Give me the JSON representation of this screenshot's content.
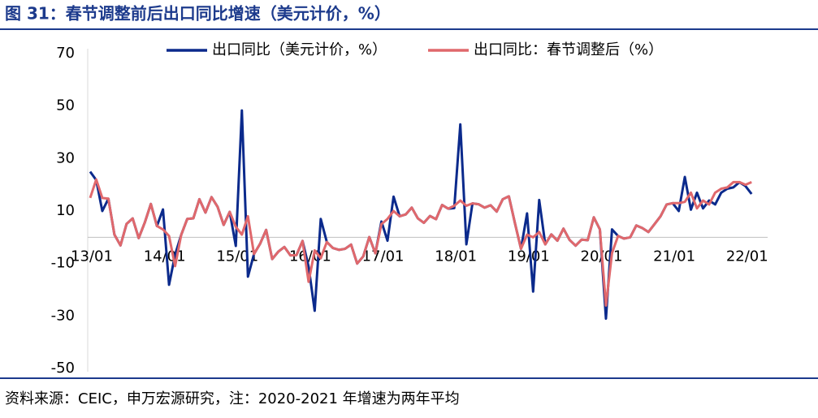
{
  "chart_data": {
    "type": "line",
    "title": "图 31：春节调整前后出口同比增速（美元计价，%）",
    "source": "资料来源：CEIC，申万宏源研究，注：2020-2021 年增速为两年平均",
    "categories": [
      "13/01",
      null,
      null,
      null,
      null,
      null,
      null,
      null,
      null,
      null,
      null,
      null,
      "14/01",
      null,
      null,
      null,
      null,
      null,
      null,
      null,
      null,
      null,
      null,
      null,
      "15/01",
      null,
      null,
      null,
      null,
      null,
      null,
      null,
      null,
      null,
      null,
      null,
      "16/01",
      null,
      null,
      null,
      null,
      null,
      null,
      null,
      null,
      null,
      null,
      null,
      "17/01",
      null,
      null,
      null,
      null,
      null,
      null,
      null,
      null,
      null,
      null,
      null,
      "18/01",
      null,
      null,
      null,
      null,
      null,
      null,
      null,
      null,
      null,
      null,
      null,
      "19/01",
      null,
      null,
      null,
      null,
      null,
      null,
      null,
      null,
      null,
      null,
      null,
      "20/01",
      null,
      null,
      null,
      null,
      null,
      null,
      null,
      null,
      null,
      null,
      null,
      "21/01",
      null,
      null,
      null,
      null,
      null,
      null,
      null,
      null,
      null,
      null,
      null,
      "22/01",
      null
    ],
    "series": [
      {
        "name": "出口同比（美元计价，%）",
        "color": "#0b2a8c",
        "values": [
          25,
          21.8,
          10,
          14.7,
          1,
          -3.1,
          5.1,
          7.2,
          -0.3,
          5.6,
          12.7,
          4.3,
          10.6,
          -18.1,
          -6.6,
          0.9,
          7,
          7.2,
          14.5,
          9.4,
          15.3,
          11.6,
          4.7,
          9.7,
          -3.3,
          48.3,
          -15,
          -6.4,
          -2.5,
          2.8,
          -8.3,
          -5.5,
          -3.7,
          -6.9,
          -6.8,
          -1.4,
          -11.2,
          -28,
          7,
          -1.8,
          -4.1,
          -4.8,
          -4.4,
          -2.8,
          -10,
          -7.3,
          0.1,
          -6.1,
          6,
          -1.3,
          15.5,
          8,
          8.7,
          11.3,
          7.2,
          5.5,
          8.1,
          6.9,
          12.3,
          10.9,
          11.1,
          43,
          -2.7,
          12.9,
          12.6,
          11.3,
          12.2,
          9.8,
          14.5,
          15.6,
          5.4,
          -4.4,
          9.1,
          -20.7,
          14.2,
          -2.7,
          1.1,
          -1.3,
          3.3,
          -1,
          -3.2,
          -0.9,
          -1.1,
          7.6,
          3,
          -31,
          3,
          0.5,
          -0.5,
          0,
          4.5,
          3.5,
          2,
          5,
          8,
          12.5,
          13,
          10,
          23,
          10.5,
          17,
          11,
          14,
          12.5,
          17,
          18.5,
          19,
          21,
          19.5,
          16.5
        ]
      },
      {
        "name": "出口同比：春节调整后（%）",
        "color": "#e0686c",
        "values": [
          15,
          22,
          15,
          14.7,
          1,
          -3.1,
          5.1,
          7.2,
          -0.3,
          5.6,
          12.7,
          4.3,
          3,
          0.5,
          -11,
          0.9,
          7,
          7.2,
          14.5,
          9.4,
          15.3,
          11.6,
          4.7,
          9.7,
          4,
          1,
          8,
          -6.4,
          -2.5,
          2.8,
          -8.3,
          -5.5,
          -3.7,
          -6.9,
          -6.8,
          -1.4,
          -17,
          -5,
          -8,
          -1.8,
          -4.1,
          -4.8,
          -4.4,
          -2.8,
          -10,
          -7.3,
          0.1,
          -6.1,
          5,
          7,
          10,
          8,
          8.7,
          11.3,
          7.2,
          5.5,
          8.1,
          6.9,
          12.3,
          10.9,
          12,
          14,
          12,
          12.9,
          12.6,
          11.3,
          12.2,
          9.8,
          14.5,
          15.6,
          5.4,
          -4.4,
          1,
          0,
          2,
          -2.7,
          1.1,
          -1.3,
          3.3,
          -1,
          -3.2,
          -0.9,
          -1.1,
          7.6,
          3,
          -26,
          -6,
          0.5,
          -0.5,
          0,
          4.5,
          3.5,
          2,
          5,
          8,
          12.5,
          13,
          13,
          13.5,
          17,
          11,
          14,
          12.5,
          17,
          18.5,
          19,
          21,
          21,
          20,
          21
        ]
      }
    ],
    "ylim": [
      -50,
      70
    ],
    "yticks": [
      -50,
      -30,
      -10,
      10,
      30,
      50,
      70
    ],
    "grid": false,
    "legend": "top"
  }
}
